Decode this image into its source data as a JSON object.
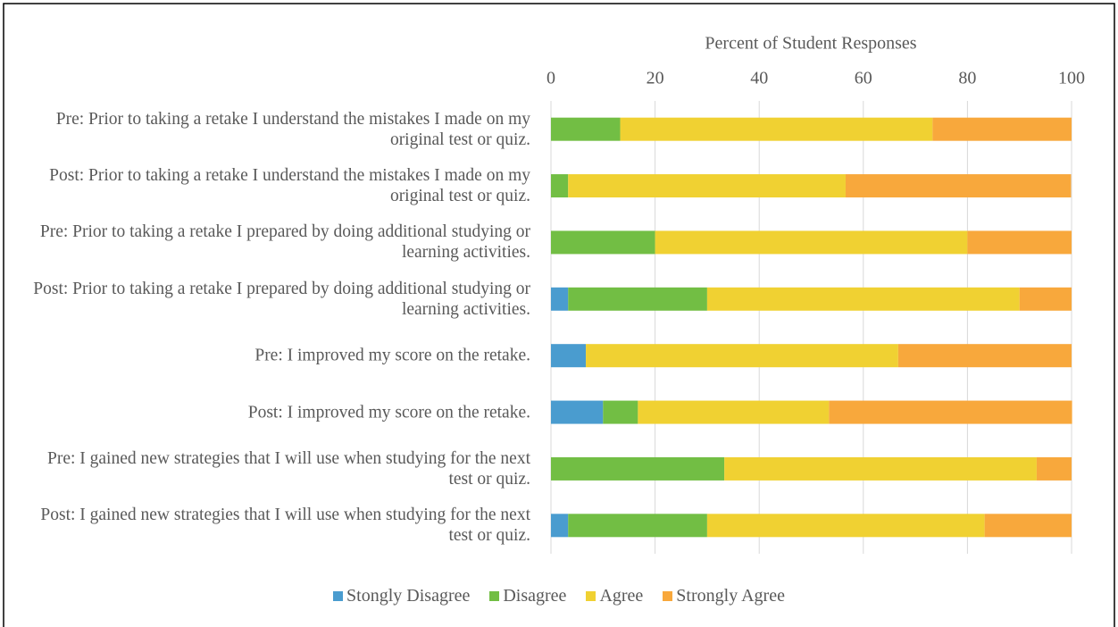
{
  "chart_data": {
    "type": "stacked_barh",
    "x_label": "Percent of Student Responses",
    "categories": [
      "Pre: Prior to taking a retake I understand the mistakes I made on my original test or quiz.",
      "Post: Prior to taking a retake I understand the mistakes I made on my original test or quiz.",
      "Pre: Prior to taking a retake I prepared by doing additional studying or learning activities.",
      "Post: Prior to taking a retake I prepared by doing additional studying or learning activities.",
      "Pre: I improved my score on the retake.",
      "Post: I improved my score on the retake.",
      "Pre: I gained new strategies that I will use when studying for the next test or quiz.",
      "Post: I gained new strategies that I will use when studying for the next test or quiz."
    ],
    "series": [
      {
        "name": "Stongly Disagree",
        "color": "#4a9ccf",
        "values": [
          0,
          0,
          0,
          3.3,
          6.7,
          10,
          0,
          3.3
        ]
      },
      {
        "name": "Disagree",
        "color": "#72be44",
        "values": [
          13.3,
          3.3,
          20,
          26.7,
          0,
          6.7,
          33.3,
          26.7
        ]
      },
      {
        "name": "Agree",
        "color": "#f0d132",
        "values": [
          60,
          53.3,
          60,
          60,
          60,
          36.7,
          60,
          53.3
        ]
      },
      {
        "name": "Strongly Agree",
        "color": "#f8a83c",
        "values": [
          26.7,
          43.3,
          20,
          10,
          33.3,
          46.7,
          6.7,
          16.7
        ]
      }
    ],
    "xlim": [
      0,
      100
    ],
    "xticks": [
      0,
      20,
      40,
      60,
      80,
      100
    ],
    "grid": true,
    "legend": "bottom"
  }
}
